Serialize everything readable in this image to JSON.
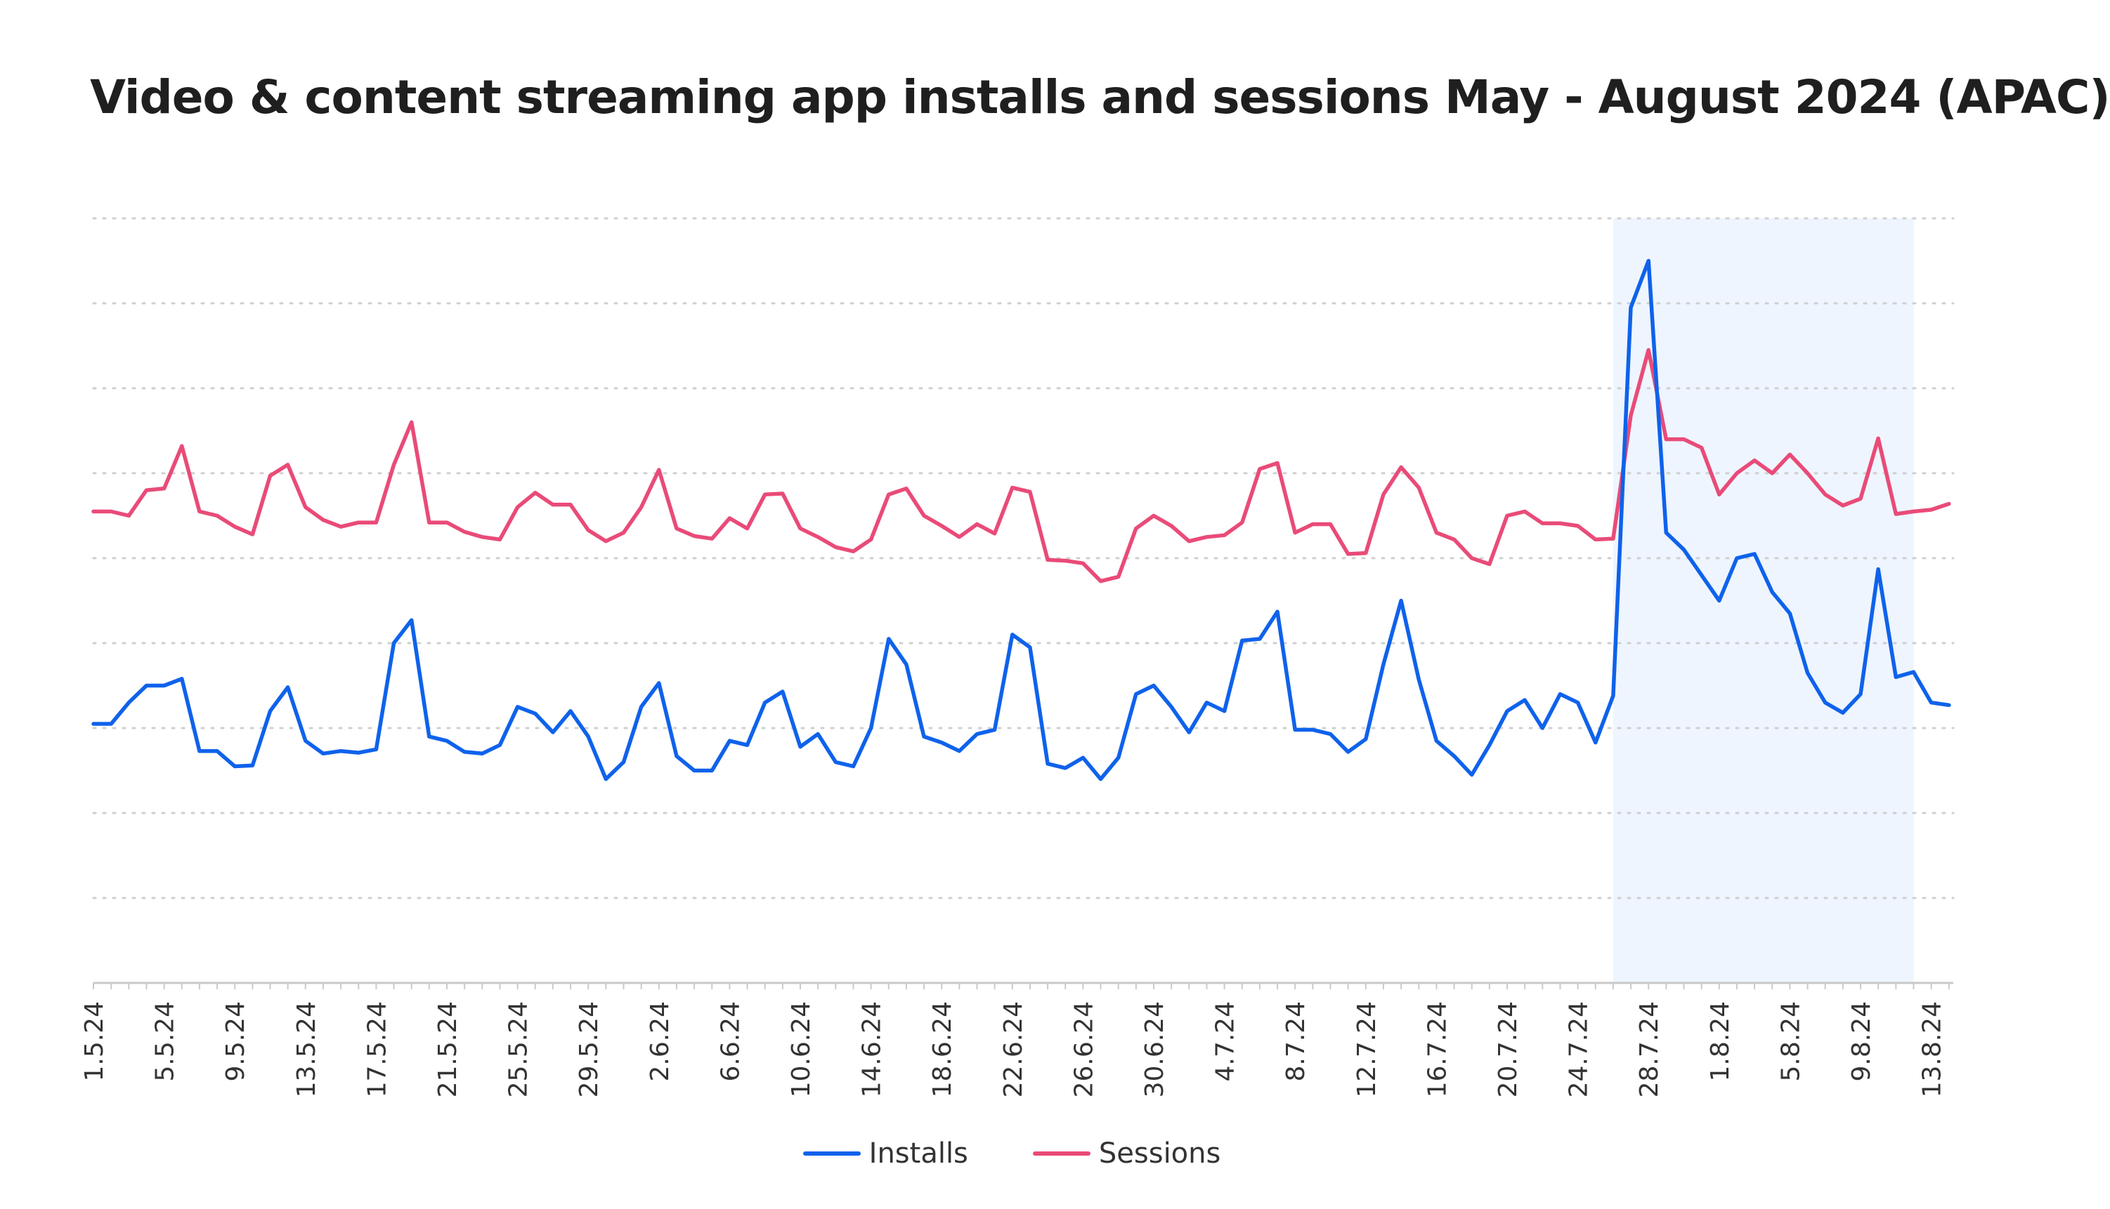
{
  "chart_data": {
    "type": "line",
    "title": "Video & content streaming app installs and sessions May - August 2024 (APAC)",
    "xlabel": "",
    "ylabel": "",
    "y_axis_labels_shown": false,
    "ylim": [
      0,
      9
    ],
    "grid": true,
    "legend_position": "bottom-center",
    "highlight_range": [
      "26.7.24",
      "12.8.24"
    ],
    "highlight_color": "#eef5fe",
    "x_tick_labels": [
      "1.5.24",
      "5.5.24",
      "9.5.24",
      "13.5.24",
      "17.5.24",
      "21.5.24",
      "25.5.24",
      "29.5.24",
      "2.6.24",
      "6.6.24",
      "10.6.24",
      "14.6.24",
      "18.6.24",
      "22.6.24",
      "26.6.24",
      "30.6.24",
      "4.7.24",
      "8.7.24",
      "12.7.24",
      "16.7.24",
      "20.7.24",
      "24.7.24",
      "28.7.24",
      "1.8.24",
      "5.8.24",
      "9.8.24",
      "13.8.24"
    ],
    "series": [
      {
        "name": "Installs",
        "color": "#0f62eb",
        "values": [
          3.05,
          3.05,
          3.3,
          3.5,
          3.5,
          3.58,
          2.73,
          2.73,
          2.55,
          2.56,
          3.2,
          3.48,
          2.85,
          2.7,
          2.73,
          2.71,
          2.75,
          4.0,
          4.27,
          2.9,
          2.85,
          2.72,
          2.7,
          2.8,
          3.25,
          3.17,
          2.95,
          3.2,
          2.9,
          2.4,
          2.6,
          3.25,
          3.53,
          2.67,
          2.5,
          2.5,
          2.85,
          2.8,
          3.3,
          3.43,
          2.78,
          2.93,
          2.6,
          2.55,
          3.0,
          4.05,
          3.75,
          2.9,
          2.83,
          2.73,
          2.93,
          2.98,
          4.1,
          3.95,
          2.58,
          2.53,
          2.65,
          2.4,
          2.65,
          3.4,
          3.5,
          3.25,
          2.95,
          3.3,
          3.2,
          4.03,
          4.05,
          4.37,
          2.98,
          2.98,
          2.93,
          2.72,
          2.87,
          3.75,
          4.5,
          3.57,
          2.85,
          2.67,
          2.45,
          2.8,
          3.2,
          3.33,
          3.0,
          3.4,
          3.3,
          2.83,
          3.38,
          7.95,
          8.5,
          5.3,
          5.1,
          4.8,
          4.5,
          5.0,
          5.05,
          4.6,
          4.35,
          3.65,
          3.3,
          3.18,
          3.4,
          4.87,
          3.6,
          3.66,
          3.3,
          3.27
        ]
      },
      {
        "name": "Sessions",
        "color": "#e94b78",
        "values": [
          5.55,
          5.55,
          5.5,
          5.8,
          5.82,
          6.32,
          5.55,
          5.5,
          5.37,
          5.28,
          5.97,
          6.1,
          5.6,
          5.45,
          5.37,
          5.42,
          5.42,
          6.1,
          6.6,
          5.42,
          5.42,
          5.31,
          5.25,
          5.22,
          5.6,
          5.77,
          5.63,
          5.63,
          5.33,
          5.2,
          5.3,
          5.6,
          6.04,
          5.35,
          5.26,
          5.23,
          5.47,
          5.35,
          5.75,
          5.76,
          5.35,
          5.25,
          5.13,
          5.08,
          5.22,
          5.75,
          5.82,
          5.5,
          5.38,
          5.25,
          5.4,
          5.29,
          5.83,
          5.78,
          4.98,
          4.97,
          4.94,
          4.73,
          4.78,
          5.35,
          5.5,
          5.38,
          5.2,
          5.25,
          5.27,
          5.42,
          6.05,
          6.12,
          5.3,
          5.4,
          5.4,
          5.05,
          5.06,
          5.75,
          6.07,
          5.83,
          5.3,
          5.22,
          5.0,
          4.93,
          5.5,
          5.55,
          5.41,
          5.41,
          5.38,
          5.22,
          5.23,
          6.68,
          7.45,
          6.4,
          6.4,
          6.3,
          5.75,
          6.0,
          6.15,
          6.0,
          6.22,
          6.0,
          5.75,
          5.62,
          5.7,
          6.41,
          5.52,
          5.55,
          5.57,
          5.64
        ]
      }
    ]
  }
}
